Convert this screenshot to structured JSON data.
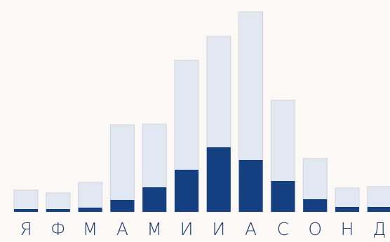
{
  "colors": {
    "background": "#fbf8f5",
    "total_bar": "#e2e8f1",
    "total_bar_edge": "#cdd3dc",
    "highlight_bar": "#143f80",
    "label": "#1b3f78"
  },
  "chart_data": {
    "type": "bar",
    "title": "",
    "xlabel": "",
    "ylabel": "",
    "categories": [
      "Я",
      "Ф",
      "М",
      "А",
      "М",
      "И",
      "И",
      "А",
      "С",
      "О",
      "Н",
      "Д"
    ],
    "series": [
      {
        "values": [
          31,
          27,
          42,
          124,
          125,
          216,
          250,
          285,
          159,
          76,
          34,
          36
        ]
      },
      {
        "values": [
          4,
          4,
          6,
          17,
          35,
          60,
          92,
          74,
          44,
          18,
          7,
          7
        ]
      }
    ],
    "stacking": "overlay",
    "ylim": [
      0,
      285
    ],
    "grid": false,
    "legend": "none"
  }
}
